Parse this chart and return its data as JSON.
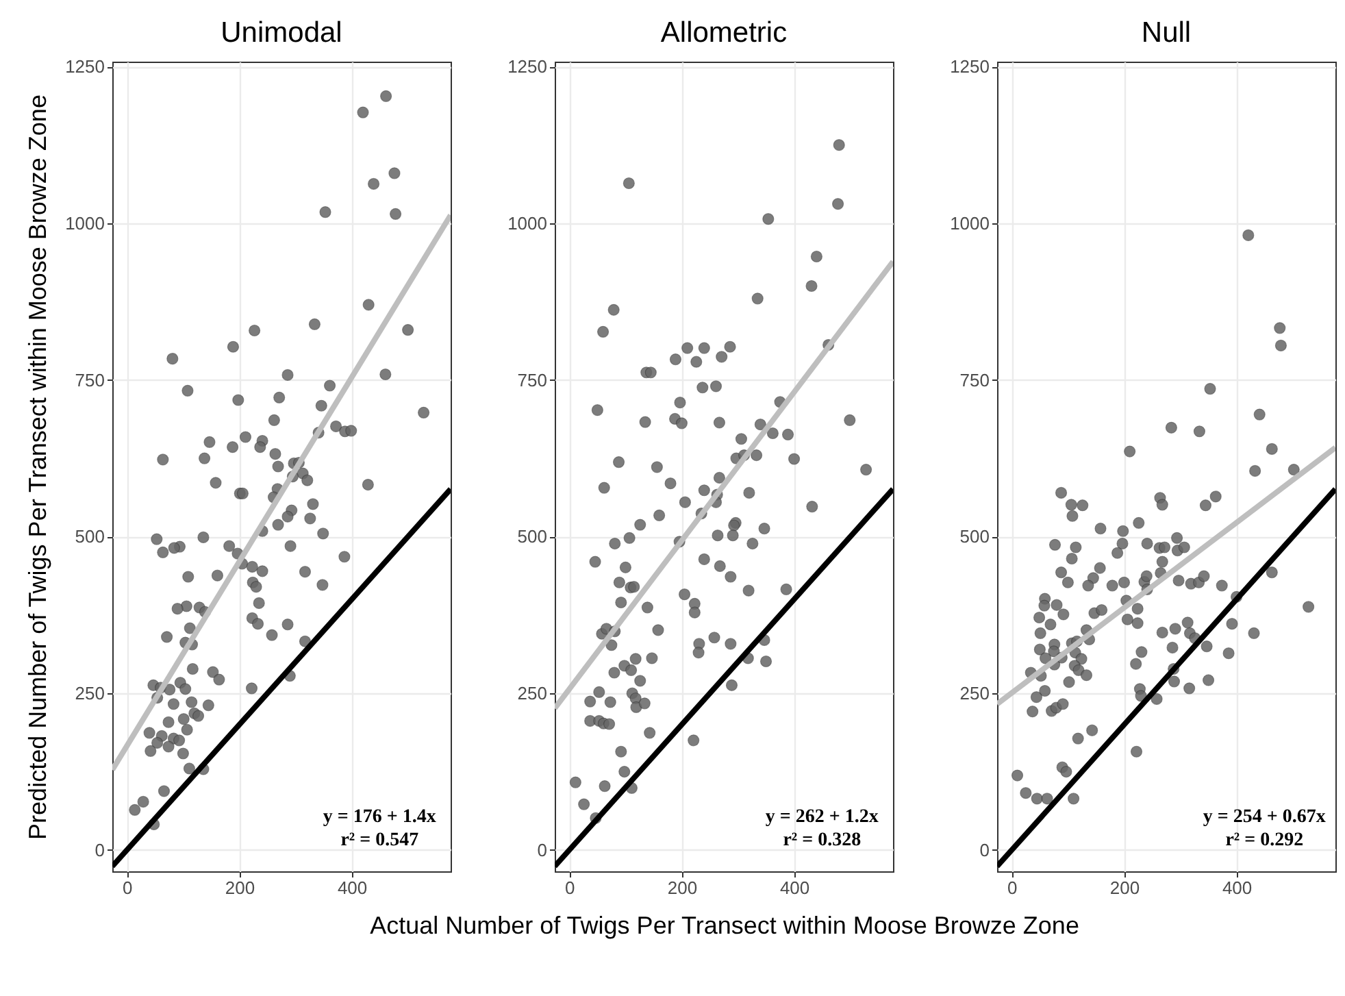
{
  "chart_data": [
    {
      "type": "scatter",
      "title": "Unimodal",
      "ylabel": "Predicted Number of Twigs Per Transect within Moose Browze Zone",
      "xlim": [
        -26,
        576
      ],
      "ylim": [
        -34,
        1258
      ],
      "xticks": [
        0,
        200,
        400
      ],
      "yticks": [
        0,
        250,
        500,
        750,
        1000,
        1250
      ],
      "grid": true,
      "annotations": [
        "y = 176 + 1.4x",
        "r² = 0.547"
      ],
      "series": [
        {
          "type": "scatter",
          "marker": "circle",
          "color": "#666666",
          "x": [
            461,
            420,
            476,
            439,
            478,
            353,
            430,
            334,
            500,
            227,
            189,
            460,
            286,
            81,
            108,
            198,
            361,
            271,
            346,
            262,
            528,
            372,
            388,
            399,
            341,
            147,
            211,
            241,
            237,
            188,
            138,
            64,
            264,
            269,
            297,
            306,
            313,
            295,
            321,
            158,
            429,
            201,
            206,
            268,
            261,
            331,
            293,
            286,
            326,
            269,
            241,
            349,
            53,
            136,
            94,
            84,
            64,
            182,
            197,
            291,
            387,
            205,
            223,
            241,
            317,
            348,
            161,
            109,
            224,
            230,
            235,
            106,
            129,
            139,
            90,
            112,
            223,
            233,
            286,
            258,
            71,
            317,
            104,
            116,
            117,
            153,
            164,
            95,
            47,
            54,
            60,
            76,
            104,
            222,
            290,
            83,
            115,
            145,
            74,
            101,
            120,
            127,
            40,
            62,
            83,
            93,
            54,
            74,
            42,
            107,
            100,
            111,
            136,
            66,
            29,
            14,
            48
          ],
          "values": [
            1203,
            1177,
            1080,
            1063,
            1015,
            1018,
            870,
            839,
            830,
            829,
            803,
            759,
            758,
            784,
            733,
            718,
            741,
            722,
            709,
            686,
            698,
            676,
            668,
            669,
            666,
            651,
            659,
            653,
            643,
            643,
            625,
            623,
            632,
            612,
            617,
            618,
            601,
            596,
            590,
            586,
            583,
            569,
            569,
            576,
            563,
            552,
            542,
            532,
            529,
            519,
            509,
            505,
            496,
            499,
            484,
            482,
            475,
            485,
            473,
            485,
            468,
            457,
            452,
            445,
            444,
            423,
            438,
            436,
            427,
            420,
            394,
            389,
            387,
            380,
            385,
            354,
            370,
            361,
            360,
            343,
            340,
            333,
            331,
            328,
            289,
            284,
            272,
            267,
            263,
            243,
            259,
            256,
            257,
            258,
            278,
            233,
            236,
            231,
            204,
            209,
            218,
            214,
            187,
            182,
            178,
            175,
            171,
            165,
            158,
            192,
            154,
            130,
            129,
            94,
            77,
            64,
            41
          ]
        },
        {
          "type": "line",
          "color": "#bebebe",
          "x": [
            -26,
            576
          ],
          "values": [
            128,
            1013
          ]
        },
        {
          "type": "line",
          "color": "#000000",
          "x": [
            -26,
            576
          ],
          "values": [
            -26,
            576
          ]
        }
      ]
    },
    {
      "type": "scatter",
      "title": "Allometric",
      "xlabel": "Actual Number of Twigs Per Transect within Moose Browze Zone",
      "xlim": [
        -26,
        576
      ],
      "ylim": [
        -34,
        1258
      ],
      "xticks": [
        0,
        200,
        400
      ],
      "yticks": [
        0,
        250,
        500,
        750,
        1000,
        1250
      ],
      "grid": true,
      "annotations": [
        "y = 262 + 1.2x",
        "r² = 0.328"
      ],
      "series": [
        {
          "type": "scatter",
          "marker": "circle",
          "color": "#666666",
          "x": [
            480,
            106,
            478,
            354,
            440,
            431,
            335,
            79,
            60,
            461,
            210,
            240,
            286,
            189,
            226,
            271,
            137,
            145,
            237,
            261,
            50,
            197,
            375,
            135,
            267,
            340,
            188,
            200,
            362,
            389,
            306,
            499,
            88,
            156,
            297,
            311,
            333,
            400,
            62,
            180,
            267,
            528,
            320,
            240,
            263,
            432,
            206,
            261,
            235,
            160,
            126,
            296,
            293,
            347,
            264,
            291,
            107,
            196,
            326,
            81,
            46,
            100,
            240,
            268,
            287,
            89,
            319,
            386,
            109,
            115,
            92,
            205,
            223,
            223,
            139,
            58,
            66,
            81,
            75,
            158,
            231,
            230,
            258,
            287,
            347,
            350,
            318,
            118,
            147,
            98,
            110,
            80,
            126,
            112,
            118,
            119,
            134,
            53,
            37,
            73,
            37,
            53,
            61,
            71,
            143,
            289,
            221,
            92,
            98,
            11,
            63,
            26,
            111,
            47
          ],
          "values": [
            1125,
            1064,
            1031,
            1007,
            947,
            900,
            880,
            862,
            827,
            806,
            801,
            801,
            803,
            783,
            779,
            787,
            762,
            762,
            738,
            740,
            702,
            714,
            715,
            683,
            682,
            679,
            688,
            681,
            665,
            663,
            656,
            686,
            619,
            611,
            625,
            630,
            630,
            624,
            578,
            585,
            594,
            607,
            570,
            574,
            567,
            548,
            555,
            555,
            537,
            534,
            519,
            522,
            518,
            513,
            502,
            502,
            498,
            492,
            489,
            489,
            460,
            451,
            464,
            453,
            436,
            427,
            414,
            416,
            419,
            420,
            395,
            408,
            393,
            379,
            387,
            345,
            353,
            349,
            327,
            351,
            329,
            315,
            339,
            329,
            335,
            301,
            306,
            305,
            306,
            294,
            287,
            283,
            270,
            250,
            242,
            228,
            234,
            252,
            237,
            236,
            206,
            206,
            202,
            201,
            187,
            263,
            175,
            157,
            125,
            108,
            102,
            73,
            99,
            51
          ]
        },
        {
          "type": "line",
          "color": "#bebebe",
          "x": [
            -26,
            576
          ],
          "values": [
            226,
            939
          ]
        },
        {
          "type": "line",
          "color": "#000000",
          "x": [
            -26,
            576
          ],
          "values": [
            -26,
            576
          ]
        }
      ]
    },
    {
      "type": "scatter",
      "title": "Null",
      "xlim": [
        -26,
        576
      ],
      "ylim": [
        -34,
        1258
      ],
      "xticks": [
        0,
        200,
        400
      ],
      "yticks": [
        0,
        250,
        500,
        750,
        1000,
        1250
      ],
      "grid": true,
      "annotations": [
        "y = 254 + 0.67x",
        "r² = 0.292"
      ],
      "series": [
        {
          "type": "scatter",
          "marker": "circle",
          "color": "#666666",
          "x": [
            421,
            477,
            479,
            353,
            441,
            284,
            334,
            463,
            210,
            502,
            433,
            264,
            268,
            363,
            345,
            88,
            106,
            126,
            108,
            158,
            198,
            226,
            77,
            114,
            197,
            188,
            241,
            263,
            272,
            294,
            295,
            307,
            107,
            268,
            88,
            100,
            145,
            157,
            136,
            179,
            200,
            236,
            240,
            241,
            265,
            297,
            319,
            333,
            342,
            374,
            463,
            59,
            58,
            49,
            80,
            92,
            69,
            147,
            160,
            204,
            224,
            206,
            224,
            268,
            291,
            313,
            317,
            326,
            347,
            392,
            400,
            431,
            528,
            51,
            76,
            75,
            50,
            60,
            76,
            107,
            116,
            133,
            138,
            113,
            124,
            112,
            119,
            133,
            102,
            34,
            52,
            59,
            44,
            71,
            37,
            79,
            221,
            231,
            286,
            288,
            289,
            316,
            350,
            386,
            228,
            230,
            258,
            118,
            143,
            222,
            89,
            91,
            90,
            97,
            10,
            25,
            45,
            63,
            110
          ],
          "values": [
            981,
            833,
            805,
            736,
            695,
            674,
            668,
            640,
            636,
            607,
            605,
            562,
            551,
            564,
            550,
            570,
            551,
            550,
            533,
            513,
            509,
            522,
            487,
            483,
            489,
            474,
            489,
            482,
            483,
            498,
            478,
            483,
            465,
            460,
            443,
            427,
            434,
            450,
            422,
            422,
            427,
            428,
            437,
            416,
            442,
            430,
            425,
            427,
            437,
            422,
            443,
            401,
            390,
            371,
            391,
            376,
            360,
            378,
            383,
            398,
            385,
            368,
            362,
            347,
            353,
            363,
            346,
            338,
            325,
            361,
            404,
            346,
            388,
            346,
            328,
            317,
            320,
            306,
            296,
            330,
            333,
            351,
            336,
            315,
            305,
            294,
            287,
            279,
            268,
            283,
            278,
            254,
            244,
            222,
            221,
            227,
            297,
            316,
            323,
            289,
            269,
            258,
            271,
            314,
            257,
            246,
            241,
            178,
            191,
            157,
            307,
            233,
            132,
            125,
            119,
            91,
            82,
            82,
            82
          ]
        },
        {
          "type": "line",
          "color": "#bebebe",
          "x": [
            -26,
            576
          ],
          "values": [
            233,
            642
          ]
        },
        {
          "type": "line",
          "color": "#000000",
          "x": [
            -26,
            576
          ],
          "values": [
            -26,
            576
          ]
        }
      ]
    }
  ]
}
